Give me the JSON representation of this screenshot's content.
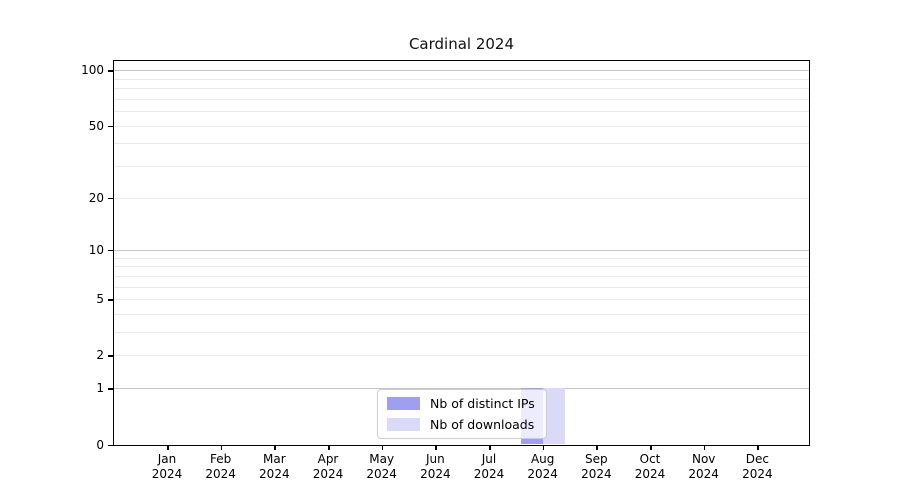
{
  "chart_data": {
    "type": "bar",
    "title": "Cardinal 2024",
    "categories": [
      "Jan",
      "Feb",
      "Mar",
      "Apr",
      "May",
      "Jun",
      "Jul",
      "Aug",
      "Sep",
      "Oct",
      "Nov",
      "Dec"
    ],
    "year": "2024",
    "series": [
      {
        "name": "Nb of distinct IPs",
        "color": "#9f9ff0",
        "values": [
          0,
          0,
          0,
          0,
          0,
          0,
          0,
          1,
          0,
          0,
          0,
          0
        ]
      },
      {
        "name": "Nb of downloads",
        "color": "#dadaf8",
        "values": [
          0,
          0,
          0,
          0,
          0,
          0,
          0,
          1,
          0,
          0,
          0,
          0
        ]
      }
    ],
    "xlabel": "",
    "ylabel": "",
    "yscale": "log1p",
    "ylim": [
      0,
      114
    ],
    "y_tick_labels": [
      "0",
      "1",
      "2",
      "5",
      "10",
      "20",
      "50",
      "100"
    ],
    "y_major_ticks": [
      0,
      1,
      2,
      5,
      10,
      20,
      50,
      100
    ],
    "y_minor_gridlines": [
      3,
      4,
      6,
      7,
      8,
      9,
      30,
      40,
      60,
      70,
      80,
      90
    ],
    "grid": "both",
    "legend_position": "lower center"
  },
  "colors": {
    "grid_major": "#c6c6c6",
    "grid_minor": "#e9e9e9",
    "axis": "#000000",
    "background": "#ffffff"
  }
}
